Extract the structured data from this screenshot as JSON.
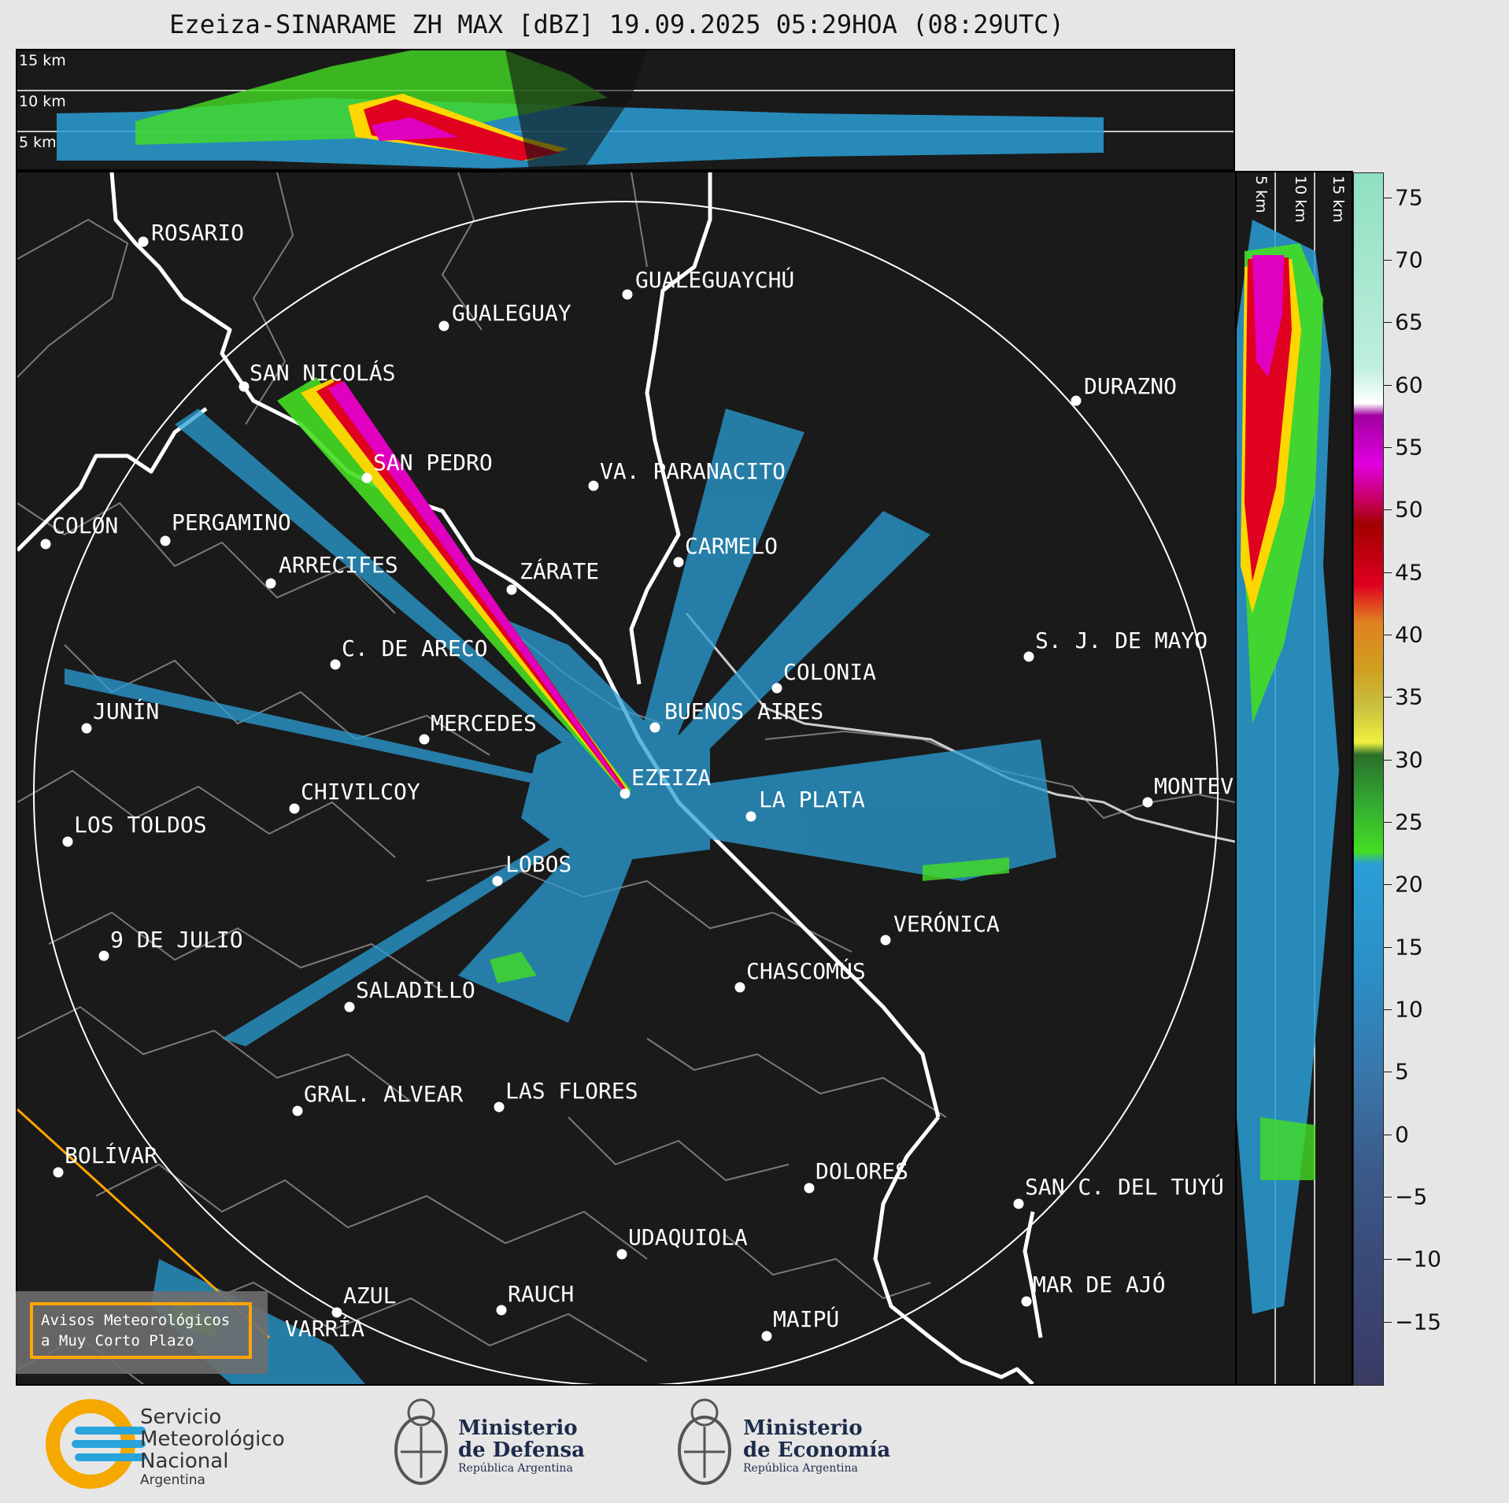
{
  "title": "Ezeiza-SINARAME ZH MAX [dBZ] 19.09.2025 05:29HOA (08:29UTC)",
  "top_panel": {
    "height_labels": [
      "15 km",
      "10 km",
      "5 km"
    ]
  },
  "side_panel": {
    "height_labels": [
      "5 km",
      "10 km",
      "15 km"
    ]
  },
  "colorbar": {
    "ticks": [
      "75",
      "70",
      "65",
      "60",
      "55",
      "50",
      "45",
      "40",
      "35",
      "30",
      "25",
      "20",
      "15",
      "10",
      "5",
      "0",
      "−5",
      "−10",
      "−15"
    ],
    "tick_values": [
      75,
      70,
      65,
      60,
      55,
      50,
      45,
      40,
      35,
      30,
      25,
      20,
      15,
      10,
      5,
      0,
      -5,
      -10,
      -15
    ],
    "range": [
      -20,
      77
    ]
  },
  "cities": [
    {
      "name": "ROSARIO"
    },
    {
      "name": "GUALEGUAYCHÚ"
    },
    {
      "name": "GUALEGUAY"
    },
    {
      "name": "SAN NICOLÁS"
    },
    {
      "name": "DURAZNO"
    },
    {
      "name": "SAN PEDRO"
    },
    {
      "name": "VA. PARANACITO"
    },
    {
      "name": "COLON"
    },
    {
      "name": "PERGAMINO"
    },
    {
      "name": "CARMELO"
    },
    {
      "name": "ARRECIFES"
    },
    {
      "name": "ZÁRATE"
    },
    {
      "name": "S. J. DE MAYO"
    },
    {
      "name": "C. DE ARECO"
    },
    {
      "name": "COLONIA"
    },
    {
      "name": "JUNÍN"
    },
    {
      "name": "MERCEDES"
    },
    {
      "name": "BUENOS AIRES"
    },
    {
      "name": "EZEIZA"
    },
    {
      "name": "MONTEV"
    },
    {
      "name": "CHIVILCOY"
    },
    {
      "name": "LA PLATA"
    },
    {
      "name": "LOS TOLDOS"
    },
    {
      "name": "LOBOS"
    },
    {
      "name": "VERÓNICA"
    },
    {
      "name": "9 DE JULIO"
    },
    {
      "name": "CHASCOMÚS"
    },
    {
      "name": "SALADILLO"
    },
    {
      "name": "GRAL. ALVEAR"
    },
    {
      "name": "LAS FLORES"
    },
    {
      "name": "BOLÍVAR"
    },
    {
      "name": "DOLORES"
    },
    {
      "name": "SAN C. DEL TUYÚ"
    },
    {
      "name": "UDAQUIOLA"
    },
    {
      "name": "AZUL"
    },
    {
      "name": "RAUCH"
    },
    {
      "name": "MAR DE AJÓ"
    },
    {
      "name": "VARRÍA"
    },
    {
      "name": "MAIPÚ"
    }
  ],
  "avisos": {
    "line1": "Avisos Meteorológicos",
    "line2": "a Muy Corto Plazo"
  },
  "logos": {
    "smn": {
      "line1": "Servicio",
      "line2": "Meteorológico",
      "line3": "Nacional",
      "line4": "Argentina"
    },
    "defensa": {
      "line1": "Ministerio",
      "line2": "de Defensa",
      "line3": "República Argentina"
    },
    "economia": {
      "line1": "Ministerio",
      "line2": "de Economía",
      "line3": "República Argentina"
    }
  },
  "colors": {
    "background": "#e6e6e6",
    "panel": "#1a1a1a",
    "range_ring": "#ffffff",
    "coast": "#ffffff",
    "borders": "#808080",
    "warning_line": "#ffa500",
    "echo_light": "#2a9fd6",
    "echo_green": "#44dd22",
    "echo_red": "#e00020",
    "echo_magenta": "#e000c0",
    "smn_blue": "#29a3dc",
    "smn_yellow": "#f5a800"
  }
}
